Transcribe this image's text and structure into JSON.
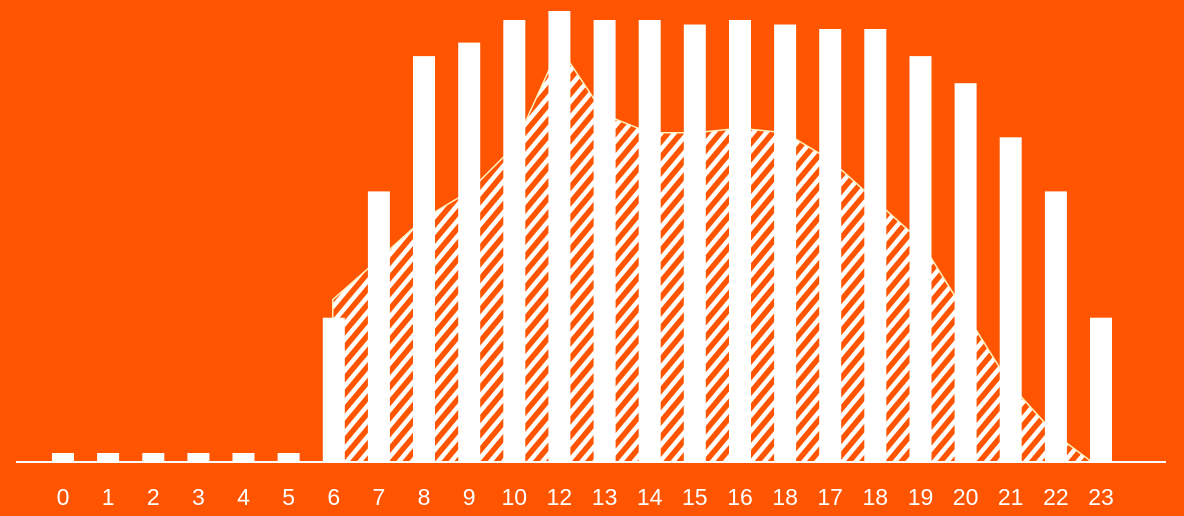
{
  "chart_data": {
    "type": "bar",
    "categories": [
      "0",
      "1",
      "2",
      "3",
      "4",
      "5",
      "6",
      "7",
      "8",
      "9",
      "10",
      "12",
      "13",
      "14",
      "15",
      "16",
      "18",
      "17",
      "18",
      "19",
      "20",
      "21",
      "22",
      "23"
    ],
    "series": [
      {
        "type": "bar",
        "values": [
          2,
          2,
          2,
          2,
          2,
          2,
          32,
          60,
          90,
          93,
          98,
          100,
          98,
          98,
          97,
          98,
          97,
          96,
          96,
          90,
          84,
          72,
          60,
          32
        ]
      },
      {
        "type": "area",
        "values": [
          0,
          0,
          0,
          0,
          0,
          0,
          36,
          45,
          54,
          60,
          70,
          92,
          77,
          73,
          73,
          74,
          73,
          67,
          58,
          49,
          33,
          17,
          6,
          0
        ]
      }
    ],
    "ylim": [
      0,
      100
    ],
    "grid": false,
    "colors": {
      "background": "#FF5500",
      "bars": "#FFFFFF",
      "area_hatch": "#FFFFFF",
      "axis": "#FFFFFF"
    }
  }
}
